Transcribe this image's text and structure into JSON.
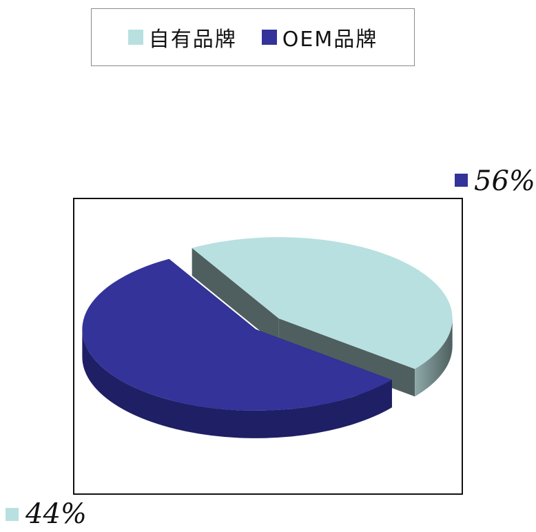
{
  "chart_data": {
    "type": "pie",
    "title": "",
    "legend_position": "top",
    "slices": [
      {
        "name": "自有品牌",
        "value": 44,
        "label": "44%",
        "color": "#b8e0e0",
        "side_color": "#8ea9a9",
        "side_color_dark": "#4f5f5f"
      },
      {
        "name": "OEM品牌",
        "value": 56,
        "label": "56%",
        "color": "#333399",
        "side_color": "#1f1f66",
        "side_color_dark": "#15154a"
      }
    ]
  }
}
